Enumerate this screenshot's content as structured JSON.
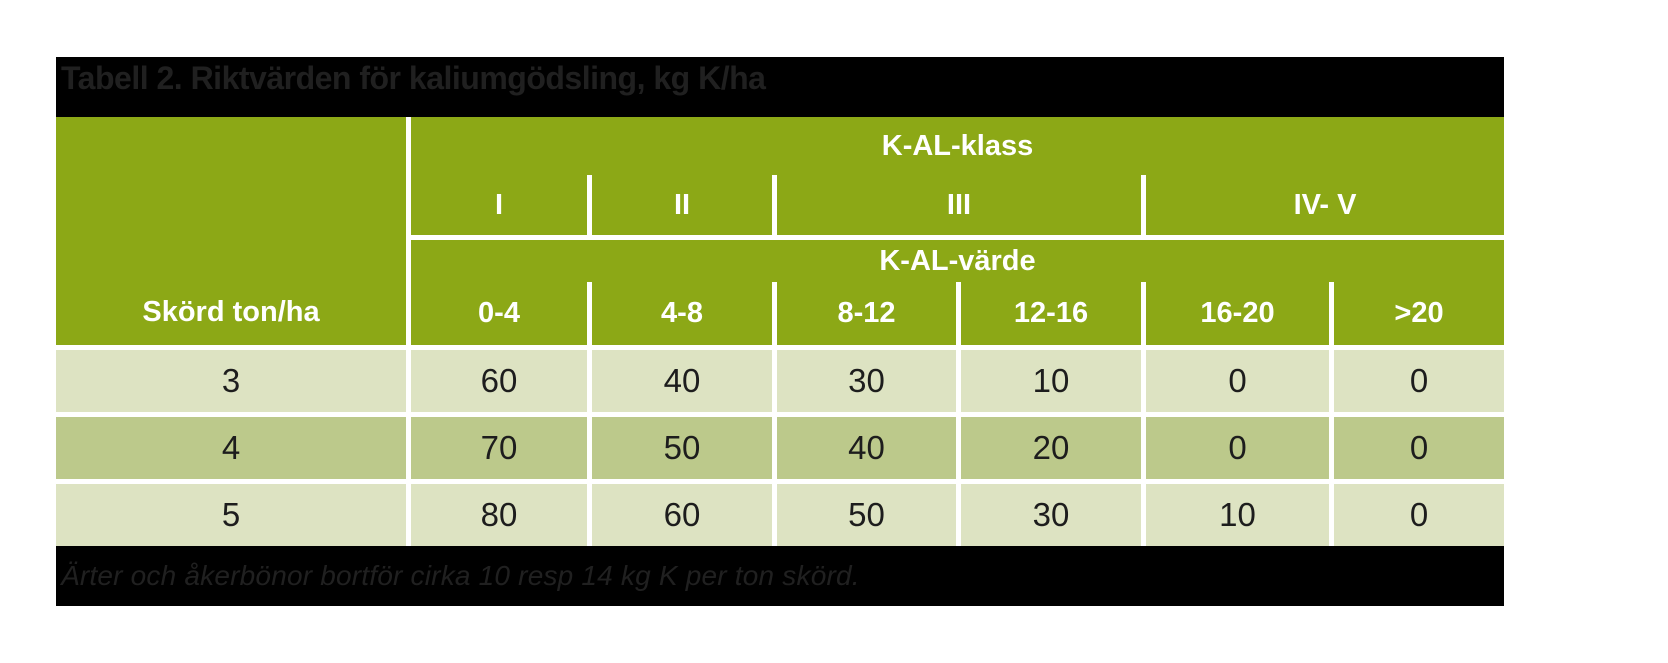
{
  "table": {
    "title": "Tabell 2. Riktvärden för kaliumgödsling, kg K/ha",
    "header": {
      "klass_label": "K-AL-klass",
      "klass_columns": [
        "I",
        "II",
        "III",
        "IV- V"
      ],
      "varde_label": "K-AL-värde",
      "row_header": "Skörd ton/ha",
      "varde_columns": [
        "0-4",
        "4-8",
        "8-12",
        "12-16",
        "16-20",
        ">20"
      ]
    },
    "rows": [
      {
        "skord": "3",
        "values": [
          "60",
          "40",
          "30",
          "10",
          "0",
          "0"
        ]
      },
      {
        "skord": "4",
        "values": [
          "70",
          "50",
          "40",
          "20",
          "0",
          "0"
        ]
      },
      {
        "skord": "5",
        "values": [
          "80",
          "60",
          "50",
          "30",
          "10",
          "0"
        ]
      }
    ],
    "footnote": "Ärter och åkerbönor bortför cirka 10 resp 14 kg K per ton skörd.",
    "colors": {
      "header_green": "#8ca816",
      "row_light": "#dde3c2",
      "row_dark": "#bcc98b",
      "band_black": "#000000",
      "band_text": "#202020",
      "cell_text": "#1d1d1d"
    }
  },
  "chart_data": {
    "type": "table",
    "title": "Tabell 2. Riktvärden för kaliumgödsling, kg K/ha",
    "column_groups": [
      {
        "label": "K-AL-klass",
        "classes": [
          "I",
          "II",
          "III",
          "IV- V"
        ]
      },
      {
        "label": "K-AL-värde",
        "ranges": [
          "0-4",
          "4-8",
          "8-12",
          "12-16",
          "16-20",
          ">20"
        ]
      }
    ],
    "row_axis_label": "Skörd ton/ha",
    "rows": [
      {
        "skord_ton_ha": 3,
        "kg_k_ha": [
          60,
          40,
          30,
          10,
          0,
          0
        ]
      },
      {
        "skord_ton_ha": 4,
        "kg_k_ha": [
          70,
          50,
          40,
          20,
          0,
          0
        ]
      },
      {
        "skord_ton_ha": 5,
        "kg_k_ha": [
          80,
          60,
          50,
          30,
          10,
          0
        ]
      }
    ],
    "footnote": "Ärter och åkerbönor bortför cirka 10 resp 14 kg K per ton skörd."
  }
}
